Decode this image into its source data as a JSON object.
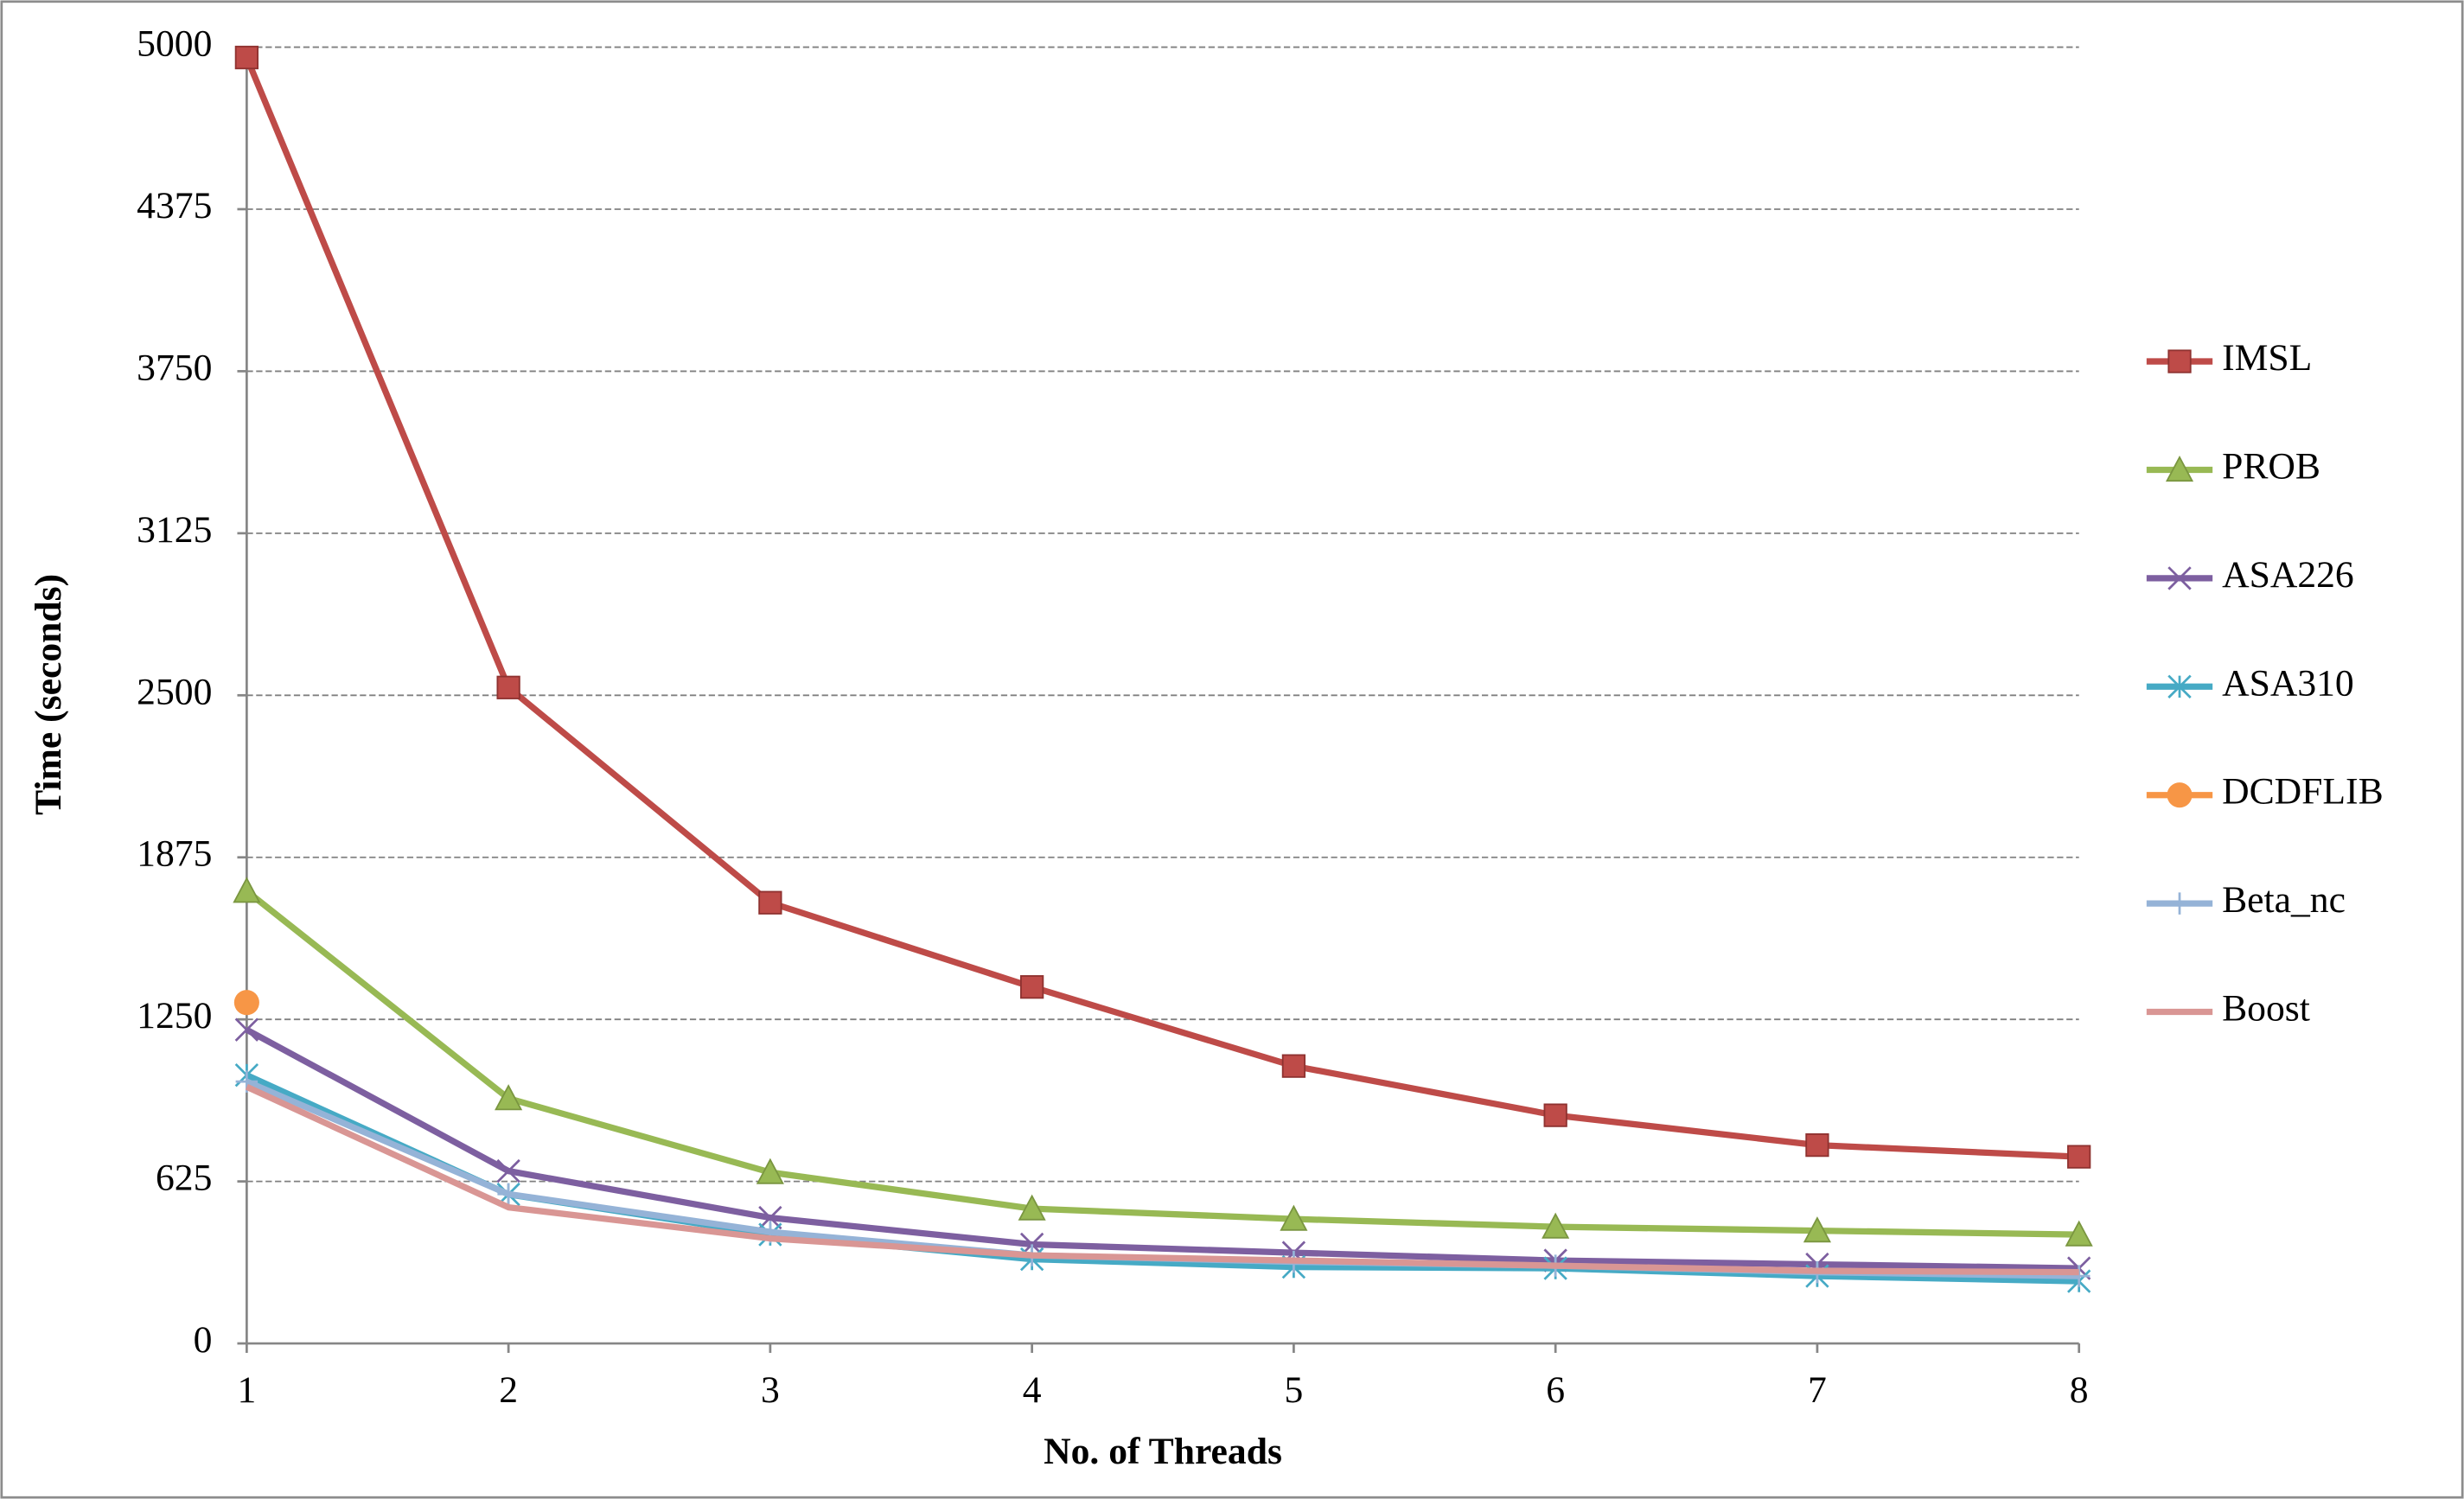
{
  "chart_data": {
    "type": "line",
    "x_label": "No. of Threads",
    "y_label": "Time (seconds)",
    "x": [
      1,
      2,
      3,
      4,
      5,
      6,
      7,
      8
    ],
    "xlim": [
      1,
      8
    ],
    "xticks": [
      1,
      2,
      3,
      4,
      5,
      6,
      7,
      8
    ],
    "ylim": [
      0,
      5000
    ],
    "yticks": [
      0,
      625,
      1250,
      1875,
      2500,
      3125,
      3750,
      4375,
      5000
    ],
    "grid": true,
    "legend": "right",
    "series": [
      {
        "name": "IMSL",
        "color": "#be4b48",
        "marker": "square",
        "values": [
          4960,
          2530,
          1700,
          1375,
          1070,
          880,
          765,
          720
        ]
      },
      {
        "name": "PROB",
        "color": "#98b954",
        "marker": "triangle",
        "values": [
          1745,
          945,
          660,
          520,
          480,
          450,
          435,
          420
        ]
      },
      {
        "name": "ASA226",
        "color": "#7d5fa0",
        "marker": "x",
        "values": [
          1210,
          665,
          485,
          382,
          350,
          320,
          305,
          290
        ]
      },
      {
        "name": "ASA310",
        "color": "#46aac5",
        "marker": "asterisk",
        "values": [
          1035,
          575,
          420,
          325,
          295,
          290,
          260,
          240
        ]
      },
      {
        "name": "DCDFLIB",
        "color": "#f79646",
        "marker": "circle",
        "values": [
          1315,
          null,
          null,
          null,
          null,
          null,
          null,
          null
        ]
      },
      {
        "name": "Beta_nc",
        "color": "#95b3d7",
        "marker": "plus",
        "values": [
          1010,
          576,
          430,
          340,
          315,
          300,
          275,
          260
        ]
      },
      {
        "name": "Boost",
        "color": "#d99694",
        "marker": "none",
        "values": [
          990,
          525,
          405,
          340,
          320,
          300,
          280,
          275
        ]
      }
    ]
  }
}
